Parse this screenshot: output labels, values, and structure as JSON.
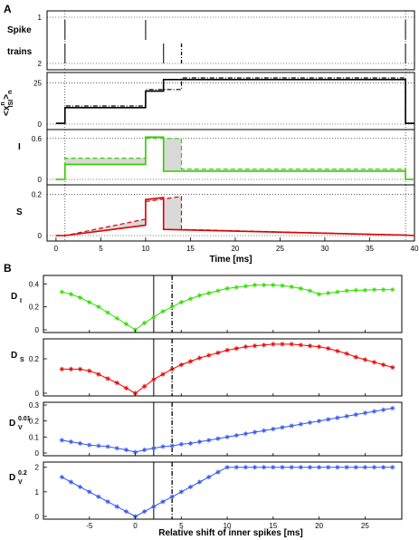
{
  "panel_letters": {
    "a": "A",
    "b": "B"
  },
  "chart_data": [
    {
      "panel": "A",
      "type": "line",
      "xlabel": "Time  [ms]",
      "xlim": [
        -1,
        40
      ],
      "xticks": [
        "0",
        "5",
        "10",
        "15",
        "20",
        "25",
        "30",
        "35",
        "40"
      ],
      "subplots": [
        {
          "id": "spikes",
          "ylabel_line1": "Spike",
          "ylabel_line2": "trains",
          "yticks": [
            "1",
            "2"
          ],
          "train1_spikes": [
            1,
            10,
            39
          ],
          "train2_spikes": [
            1,
            12,
            39
          ],
          "train2_dashdot_spike": 14
        },
        {
          "id": "isi",
          "ylabel": "<x^n_ISI>_n",
          "ylim": [
            0,
            28
          ],
          "yticks": [
            "0",
            "25"
          ],
          "series": [
            {
              "style": "solid",
              "color": "#000000",
              "points": [
                [
                  0,
                  0.5
                ],
                [
                  1,
                  0.5
                ],
                [
                  1,
                  10
                ],
                [
                  10,
                  10
                ],
                [
                  10,
                  20
                ],
                [
                  12,
                  20
                ],
                [
                  12,
                  27
                ],
                [
                  39,
                  27
                ],
                [
                  39,
                  0.5
                ],
                [
                  40,
                  0.5
                ]
              ]
            },
            {
              "style": "dashdot",
              "color": "#000000",
              "points": [
                [
                  0,
                  0.5
                ],
                [
                  1,
                  0.5
                ],
                [
                  1,
                  11
                ],
                [
                  10,
                  11
                ],
                [
                  10,
                  21
                ],
                [
                  14,
                  21
                ],
                [
                  14,
                  28
                ],
                [
                  39,
                  28
                ],
                [
                  39,
                  0.5
                ],
                [
                  40,
                  0.5
                ]
              ]
            }
          ]
        },
        {
          "id": "I",
          "ylabel": "I",
          "ylim": [
            0,
            0.65
          ],
          "yticks": [
            "0",
            "0.6"
          ],
          "color": "#33cc00",
          "series": [
            {
              "style": "solid",
              "points": [
                [
                  0,
                  0
                ],
                [
                  1,
                  0
                ],
                [
                  1,
                  0.22
                ],
                [
                  10,
                  0.22
                ],
                [
                  10,
                  0.62
                ],
                [
                  12,
                  0.62
                ],
                [
                  12,
                  0.12
                ],
                [
                  39,
                  0.12
                ],
                [
                  39,
                  0
                ],
                [
                  40,
                  0
                ]
              ]
            },
            {
              "style": "dashed",
              "points": [
                [
                  0,
                  0
                ],
                [
                  1,
                  0
                ],
                [
                  1,
                  0.31
                ],
                [
                  10,
                  0.31
                ],
                [
                  10,
                  0.6
                ],
                [
                  14,
                  0.6
                ],
                [
                  14,
                  0.15
                ],
                [
                  39,
                  0.15
                ],
                [
                  39,
                  0
                ],
                [
                  40,
                  0
                ]
              ]
            }
          ]
        },
        {
          "id": "S",
          "ylabel": "S",
          "ylim": [
            0,
            0.22
          ],
          "yticks": [
            "0",
            "0.2"
          ],
          "color": "#dd0000",
          "series": [
            {
              "style": "solid",
              "points": [
                [
                  0,
                  0
                ],
                [
                  1,
                  0
                ],
                [
                  10,
                  0.05
                ],
                [
                  10,
                  0.175
                ],
                [
                  12,
                  0.185
                ],
                [
                  12,
                  0.03
                ],
                [
                  39,
                  0.002
                ],
                [
                  40,
                  0
                ]
              ]
            },
            {
              "style": "dashed",
              "points": [
                [
                  0,
                  0
                ],
                [
                  1,
                  0
                ],
                [
                  10,
                  0.08
                ],
                [
                  10,
                  0.165
                ],
                [
                  14,
                  0.19
                ],
                [
                  14,
                  0.03
                ],
                [
                  39,
                  0.002
                ],
                [
                  40,
                  0
                ]
              ]
            }
          ]
        }
      ]
    },
    {
      "panel": "B",
      "type": "line",
      "xlabel": "Relative shift of inner spikes  [ms]",
      "xlim": [
        -10,
        29
      ],
      "xticks": [
        "-5",
        "0",
        "5",
        "10",
        "15",
        "20",
        "25"
      ],
      "xtick_values": [
        -5,
        0,
        5,
        10,
        15,
        20,
        25
      ],
      "vline_solid": 2,
      "vline_dashdot": 4,
      "x": [
        -8,
        -7,
        -6,
        -5,
        -4,
        -3,
        -2,
        -1,
        0,
        1,
        2,
        3,
        4,
        5,
        6,
        7,
        8,
        9,
        10,
        11,
        12,
        13,
        14,
        15,
        16,
        17,
        18,
        19,
        20,
        21,
        22,
        23,
        24,
        25,
        26,
        27,
        28
      ],
      "subplots": [
        {
          "id": "DI",
          "ylabel": "D",
          "ylabel_sub": "I",
          "ylim": [
            0,
            0.45
          ],
          "yticks": [
            "0",
            "0.2",
            "0.4"
          ],
          "ytick_values": [
            0,
            0.2,
            0.4
          ],
          "color": "#33dd00",
          "values": [
            0.33,
            0.31,
            0.28,
            0.24,
            0.2,
            0.15,
            0.1,
            0.05,
            0.0,
            0.06,
            0.11,
            0.16,
            0.2,
            0.24,
            0.27,
            0.3,
            0.32,
            0.34,
            0.36,
            0.37,
            0.38,
            0.39,
            0.39,
            0.39,
            0.385,
            0.375,
            0.36,
            0.34,
            0.31,
            0.32,
            0.33,
            0.34,
            0.345,
            0.345,
            0.35,
            0.35,
            0.35
          ]
        },
        {
          "id": "DS",
          "ylabel": "D",
          "ylabel_sub": "S",
          "ylim": [
            0,
            0.3
          ],
          "yticks": [
            "0",
            "0.2"
          ],
          "ytick_values": [
            0,
            0.2
          ],
          "color": "#ee0000",
          "values": [
            0.14,
            0.14,
            0.14,
            0.13,
            0.11,
            0.085,
            0.06,
            0.03,
            0.0,
            0.04,
            0.08,
            0.11,
            0.14,
            0.165,
            0.185,
            0.205,
            0.22,
            0.235,
            0.25,
            0.26,
            0.27,
            0.275,
            0.28,
            0.285,
            0.285,
            0.285,
            0.28,
            0.275,
            0.27,
            0.26,
            0.245,
            0.23,
            0.21,
            0.195,
            0.18,
            0.165,
            0.15
          ]
        },
        {
          "id": "DV001",
          "ylabel": "D",
          "ylabel_sub": "V",
          "ylabel_sup": "0.01",
          "ylim": [
            0,
            0.3
          ],
          "yticks": [
            "0",
            "0.1",
            "0.2",
            "0.3"
          ],
          "ytick_values": [
            0,
            0.1,
            0.2,
            0.3
          ],
          "color": "#3355ee",
          "values": [
            0.08,
            0.07,
            0.06,
            0.05,
            0.045,
            0.04,
            0.03,
            0.02,
            0.005,
            0.02,
            0.03,
            0.04,
            0.045,
            0.055,
            0.06,
            0.07,
            0.08,
            0.09,
            0.1,
            0.11,
            0.12,
            0.13,
            0.14,
            0.15,
            0.16,
            0.17,
            0.18,
            0.19,
            0.2,
            0.21,
            0.22,
            0.23,
            0.24,
            0.25,
            0.26,
            0.27,
            0.28
          ]
        },
        {
          "id": "DV02",
          "ylabel": "D",
          "ylabel_sub": "V",
          "ylabel_sup": "0.2",
          "ylim": [
            0,
            2.1
          ],
          "yticks": [
            "0",
            "1",
            "2"
          ],
          "ytick_values": [
            0,
            1,
            2
          ],
          "color": "#3355ee",
          "values": [
            1.6,
            1.4,
            1.2,
            1.0,
            0.8,
            0.6,
            0.4,
            0.2,
            0.0,
            0.2,
            0.4,
            0.6,
            0.8,
            1.0,
            1.2,
            1.4,
            1.6,
            1.8,
            2.0,
            2.0,
            2.0,
            2.0,
            2.0,
            2.0,
            2.0,
            2.0,
            2.0,
            2.0,
            2.0,
            2.0,
            2.0,
            2.0,
            2.0,
            2.0,
            2.0,
            2.0,
            2.0
          ]
        }
      ]
    }
  ]
}
